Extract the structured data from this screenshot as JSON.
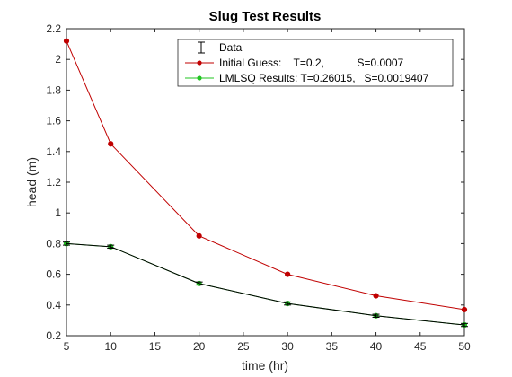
{
  "chart_data": {
    "type": "line",
    "title": "Slug Test Results",
    "xlabel": "time (hr)",
    "ylabel": "head (m)",
    "xlim": [
      5,
      50
    ],
    "ylim": [
      0.2,
      2.2
    ],
    "xticks": [
      "5",
      "10",
      "15",
      "20",
      "25",
      "30",
      "35",
      "40",
      "45",
      "50"
    ],
    "yticks": [
      "0.2",
      "0.4",
      "0.6",
      "0.8",
      "1",
      "1.2",
      "1.4",
      "1.6",
      "1.8",
      "2",
      "2.2"
    ],
    "grid": false,
    "legend_position": "top-right",
    "series": [
      {
        "name": "Data",
        "kind": "errorbar",
        "color": "#000000",
        "x": [
          5,
          10,
          20,
          30,
          40,
          50
        ],
        "y": [
          0.8,
          0.78,
          0.54,
          0.41,
          0.33,
          0.27
        ],
        "err": [
          0.01,
          0.01,
          0.01,
          0.01,
          0.01,
          0.01
        ]
      },
      {
        "name": "Initial Guess:    T=0.2,           S=0.0007",
        "kind": "line-marker",
        "color": "#c00000",
        "x": [
          5,
          10,
          20,
          30,
          40,
          50
        ],
        "y": [
          2.12,
          1.45,
          0.85,
          0.6,
          0.46,
          0.37
        ]
      },
      {
        "name": "LMLSQ Results: T=0.26015,   S=0.0019407",
        "kind": "line-marker",
        "color": "#22c422",
        "x": [
          5,
          10,
          20,
          30,
          40,
          50
        ],
        "y": [
          0.8,
          0.78,
          0.54,
          0.41,
          0.33,
          0.27
        ]
      }
    ]
  }
}
